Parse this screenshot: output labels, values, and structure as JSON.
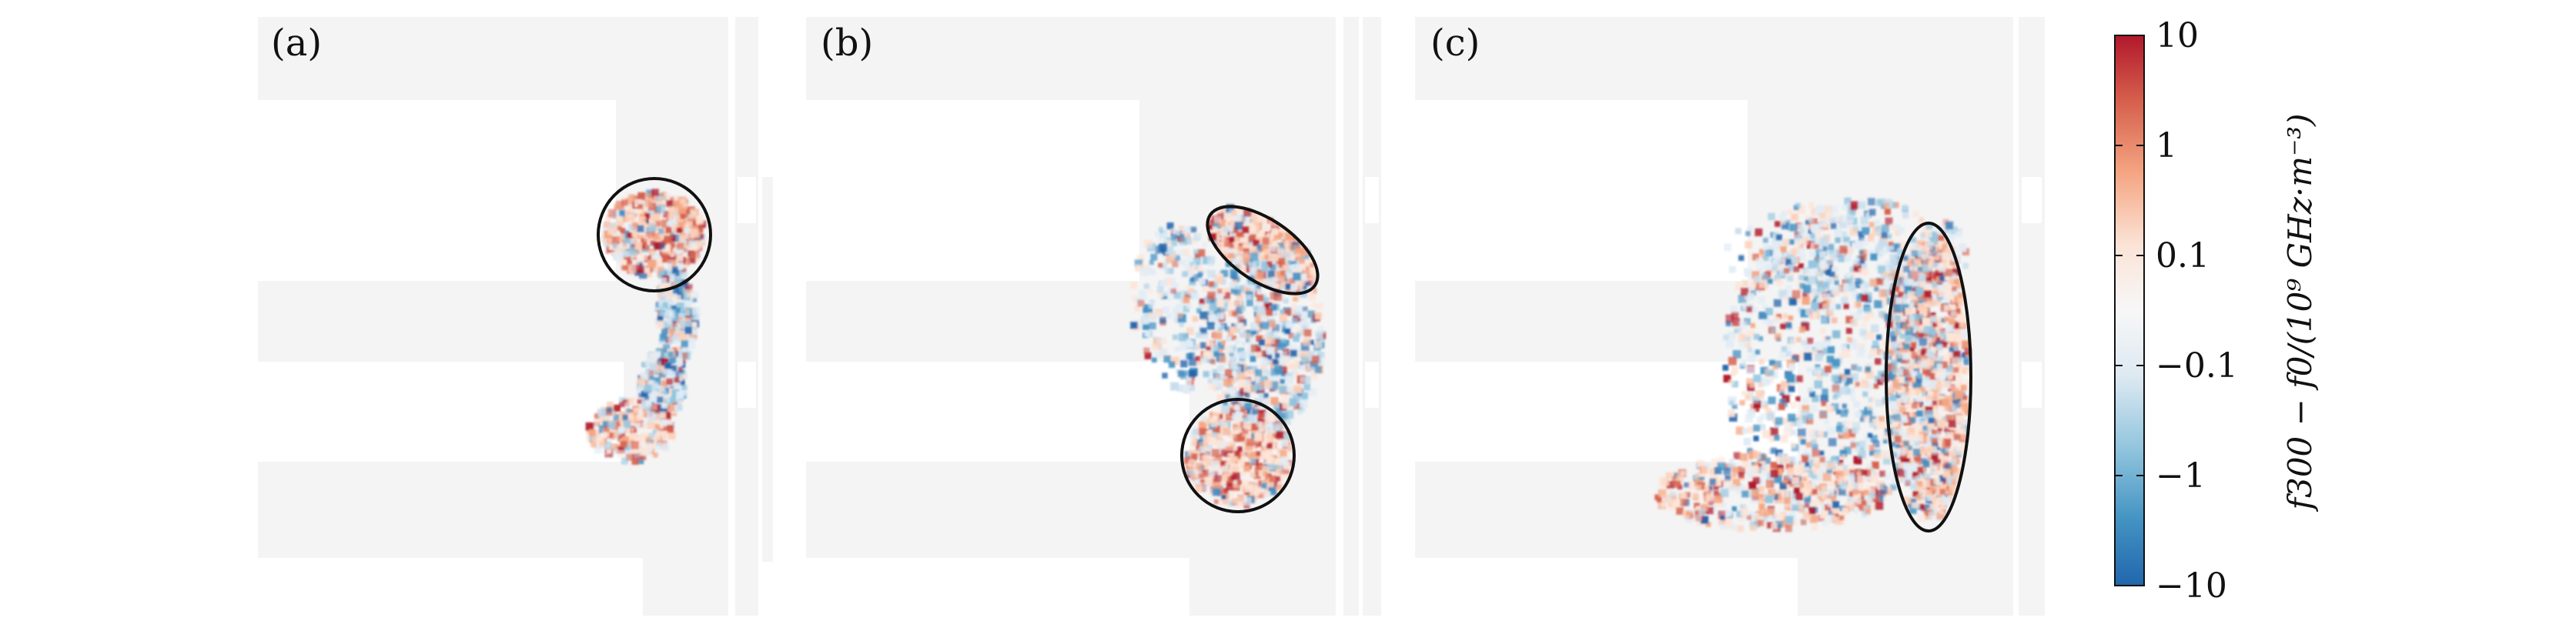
{
  "chart_data": {
    "type": "heatmap",
    "panels": [
      {
        "label": "(a)",
        "highlight": "single ellipse around upper-right cluster"
      },
      {
        "label": "(b)",
        "highlight": "two ellipses: upper tilted and lower circle"
      },
      {
        "label": "(c)",
        "highlight": "one tall vertical ellipse"
      }
    ],
    "colorbar": {
      "scale": "symmetric-log",
      "range": [
        -10,
        10
      ],
      "ticks": [
        "10",
        "1",
        "0.1",
        "−0.1",
        "−1",
        "−10"
      ],
      "tick_values": [
        10,
        1,
        0.1,
        -0.1,
        -1,
        -10
      ],
      "title": "f300 − f0/(10⁹ GHz·m⁻³)",
      "colormap": "RdBu_r",
      "colors": {
        "max": "#b2182b",
        "mid": "#f7f7f7",
        "min": "#2166ac"
      }
    },
    "background_geometry_color": "#f4f4f4"
  }
}
